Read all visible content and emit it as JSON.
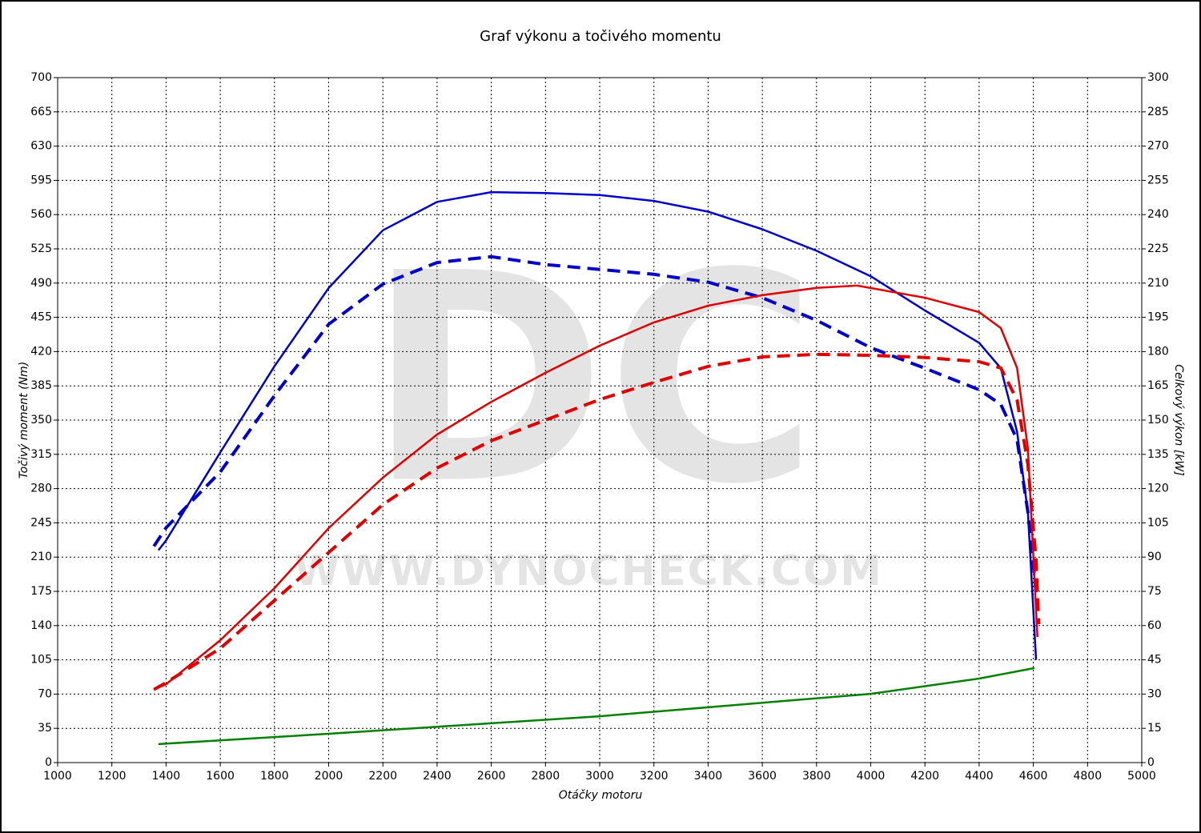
{
  "chart_data": {
    "type": "line",
    "title": "Graf výkonu a točivého momentu",
    "xlabel": "Otáčky motoru",
    "ylabel": "Točivý moment (Nm)",
    "y2label": "Celkový výkon [kW]",
    "watermark": {
      "logo": "DC",
      "url": "WWW.DYNOCHECK.COM"
    },
    "xlim": [
      1000,
      5000
    ],
    "xticks": [
      1000,
      1200,
      1400,
      1600,
      1800,
      2000,
      2200,
      2400,
      2600,
      2800,
      3000,
      3200,
      3400,
      3600,
      3800,
      4000,
      4200,
      4400,
      4600,
      4800,
      5000
    ],
    "ylim": [
      0,
      700
    ],
    "yticks": [
      0,
      35,
      70,
      105,
      140,
      175,
      210,
      245,
      280,
      315,
      350,
      385,
      420,
      455,
      490,
      525,
      560,
      595,
      630,
      665,
      700
    ],
    "y2lim": [
      0,
      300
    ],
    "y2ticks": [
      0,
      15,
      30,
      45,
      60,
      75,
      90,
      105,
      120,
      135,
      150,
      165,
      180,
      195,
      210,
      225,
      240,
      255,
      270,
      285,
      300
    ],
    "grid": true,
    "series": [
      {
        "color": "#0000cc",
        "style": "solid",
        "axis": "y",
        "x": [
          1372,
          1400,
          1600,
          1800,
          2000,
          2200,
          2400,
          2600,
          2800,
          3000,
          3200,
          3400,
          3600,
          3800,
          4000,
          4200,
          4400,
          4480,
          4540,
          4580,
          4610
        ],
        "values": [
          217,
          227,
          317,
          405,
          485,
          544,
          573,
          583,
          582,
          580,
          574,
          563,
          545,
          523,
          497,
          462,
          429,
          403,
          338,
          256,
          105
        ]
      },
      {
        "color": "#0000cc",
        "style": "dashed",
        "axis": "y",
        "x": [
          1355,
          1400,
          1600,
          1800,
          2000,
          2200,
          2400,
          2600,
          2800,
          3000,
          3200,
          3400,
          3600,
          3800,
          4000,
          4200,
          4400,
          4480,
          4540,
          4580,
          4610
        ],
        "values": [
          221,
          240,
          297,
          375,
          448,
          489,
          511,
          517,
          509,
          504,
          499,
          491,
          475,
          452,
          424,
          403,
          381,
          366,
          330,
          256,
          174
        ]
      },
      {
        "color": "#e00000",
        "style": "solid",
        "axis": "y2",
        "x": [
          1355,
          1400,
          1600,
          1800,
          2000,
          2200,
          2400,
          2600,
          2800,
          3000,
          3200,
          3400,
          3600,
          3800,
          3950,
          4200,
          4400,
          4480,
          4540,
          4580,
          4615
        ],
        "values": [
          32,
          34.3,
          53.6,
          76.4,
          102.7,
          124.8,
          143.7,
          158,
          170.7,
          182.6,
          192.8,
          200.1,
          204.7,
          207.9,
          208.9,
          203.6,
          197.3,
          190.3,
          172.8,
          137.7,
          55
        ]
      },
      {
        "color": "#e00000",
        "style": "dashed",
        "axis": "y2",
        "x": [
          1355,
          1400,
          1600,
          1800,
          2000,
          2200,
          2400,
          2600,
          2800,
          3000,
          3200,
          3400,
          3600,
          3800,
          4000,
          4200,
          4400,
          4480,
          4540,
          4580,
          4610,
          4620
        ],
        "values": [
          32,
          35,
          50,
          71,
          92,
          113,
          129,
          141,
          150,
          159,
          166.5,
          173.5,
          177.7,
          178.8,
          178.4,
          177.4,
          175.6,
          172.8,
          158.8,
          130.7,
          88.7,
          60.6
        ]
      },
      {
        "color": "#008000",
        "style": "solid",
        "axis": "y2",
        "x": [
          1372,
          2000,
          3000,
          4000,
          4400,
          4604
        ],
        "values": [
          8.1,
          12.6,
          20.3,
          30.1,
          36.8,
          41.4
        ]
      }
    ]
  }
}
